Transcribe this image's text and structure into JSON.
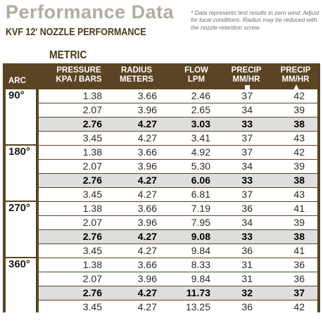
{
  "title": "Performance Data",
  "subtitle": "KVF 12' NOZZLE PERFORMANCE",
  "note": "* Data represents test results in zero wind. Adjust for local conditions. Radius may be reduced with the nozzle retention screw.",
  "section": "METRIC",
  "headers": {
    "arc": "ARC",
    "pressure": [
      "PRESSURE",
      "KPA / BARS"
    ],
    "radius": [
      "RADIUS",
      "METERS"
    ],
    "flow": [
      "FLOW",
      "LPM"
    ],
    "precip_sq": [
      "PRECIP",
      "MM/HR"
    ],
    "precip_tri": [
      "PRECIP",
      "MM/HR"
    ]
  },
  "groups": [
    {
      "arc": "90°",
      "rows": [
        [
          "1.38",
          "3.66",
          "2.46",
          "37",
          "42"
        ],
        [
          "2.07",
          "3.96",
          "2.65",
          "34",
          "39"
        ],
        [
          "2.76",
          "4.27",
          "3.03",
          "33",
          "38"
        ],
        [
          "3.45",
          "4.27",
          "3.41",
          "37",
          "43"
        ]
      ]
    },
    {
      "arc": "180°",
      "rows": [
        [
          "1.38",
          "3.66",
          "4.92",
          "37",
          "42"
        ],
        [
          "2.07",
          "3.96",
          "5.30",
          "34",
          "39"
        ],
        [
          "2.76",
          "4.27",
          "6.06",
          "33",
          "38"
        ],
        [
          "3.45",
          "4.27",
          "6.81",
          "37",
          "43"
        ]
      ]
    },
    {
      "arc": "270°",
      "rows": [
        [
          "1.38",
          "3.66",
          "7.19",
          "36",
          "41"
        ],
        [
          "2.07",
          "3.96",
          "7.95",
          "34",
          "39"
        ],
        [
          "2.76",
          "4.27",
          "9.08",
          "33",
          "38"
        ],
        [
          "3.45",
          "4.27",
          "9.84",
          "36",
          "41"
        ]
      ]
    },
    {
      "arc": "360°",
      "rows": [
        [
          "1.38",
          "3.66",
          "8.33",
          "31",
          "36"
        ],
        [
          "2.07",
          "3.96",
          "9.84",
          "31",
          "36"
        ],
        [
          "2.76",
          "4.27",
          "11.73",
          "32",
          "37"
        ],
        [
          "3.45",
          "4.27",
          "13.25",
          "36",
          "42"
        ]
      ]
    }
  ]
}
